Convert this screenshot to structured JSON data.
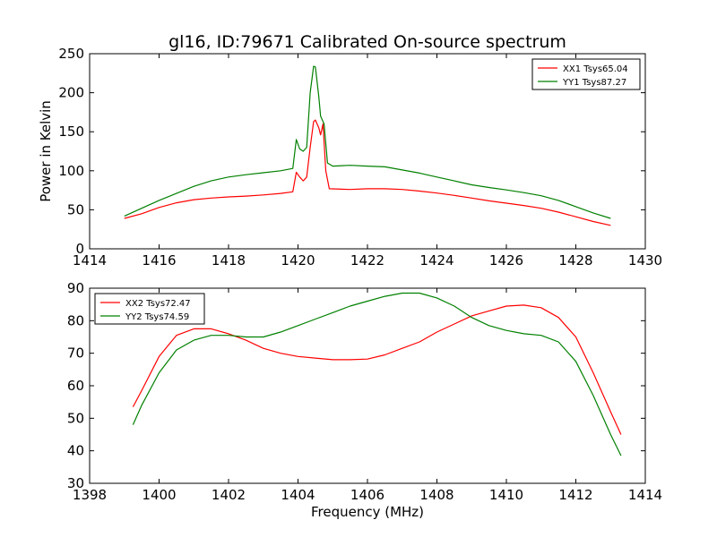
{
  "figure": {
    "title": "gl16, ID:79671 Calibrated On-source spectrum"
  },
  "chart_data": [
    {
      "type": "line",
      "title": "gl16, ID:79671 Calibrated On-source spectrum",
      "xlabel": "",
      "ylabel": "Power in Kelvin",
      "xlim": [
        1414,
        1430
      ],
      "ylim": [
        0,
        250
      ],
      "xticks": [
        1414,
        1416,
        1418,
        1420,
        1422,
        1424,
        1426,
        1428,
        1430
      ],
      "yticks": [
        0,
        50,
        100,
        150,
        200,
        250
      ],
      "grid": false,
      "legend_position": "top-right",
      "series": [
        {
          "name": "XX1 Tsys65.04",
          "color": "#ff0000",
          "points": [
            [
              1415,
              39
            ],
            [
              1415.5,
              45
            ],
            [
              1416,
              53
            ],
            [
              1416.5,
              59
            ],
            [
              1417,
              63
            ],
            [
              1417.5,
              65
            ],
            [
              1418,
              66.5
            ],
            [
              1418.5,
              67.5
            ],
            [
              1419,
              69
            ],
            [
              1419.5,
              71
            ],
            [
              1419.85,
              73
            ],
            [
              1419.95,
              98
            ],
            [
              1420.05,
              92
            ],
            [
              1420.15,
              87
            ],
            [
              1420.25,
              92
            ],
            [
              1420.35,
              130
            ],
            [
              1420.45,
              163
            ],
            [
              1420.5,
              165
            ],
            [
              1420.6,
              155
            ],
            [
              1420.65,
              146
            ],
            [
              1420.72,
              160
            ],
            [
              1420.8,
              100
            ],
            [
              1420.9,
              77
            ],
            [
              1421.5,
              76
            ],
            [
              1422,
              77
            ],
            [
              1422.5,
              77
            ],
            [
              1423,
              76
            ],
            [
              1423.5,
              74
            ],
            [
              1424,
              71.5
            ],
            [
              1424.5,
              68.5
            ],
            [
              1425,
              65
            ],
            [
              1425.5,
              61.5
            ],
            [
              1426,
              58.5
            ],
            [
              1426.5,
              55.5
            ],
            [
              1427,
              52
            ],
            [
              1427.5,
              47
            ],
            [
              1428,
              41
            ],
            [
              1428.5,
              35
            ],
            [
              1429,
              30
            ]
          ]
        },
        {
          "name": "YY1 Tsys87.27",
          "color": "#008000",
          "points": [
            [
              1415,
              42
            ],
            [
              1415.5,
              52
            ],
            [
              1416,
              62
            ],
            [
              1416.5,
              71
            ],
            [
              1417,
              80
            ],
            [
              1417.5,
              87
            ],
            [
              1418,
              92
            ],
            [
              1418.5,
              95
            ],
            [
              1419,
              97.5
            ],
            [
              1419.5,
              100
            ],
            [
              1419.85,
              103
            ],
            [
              1419.95,
              140
            ],
            [
              1420.05,
              128
            ],
            [
              1420.15,
              125
            ],
            [
              1420.25,
              130
            ],
            [
              1420.35,
              200
            ],
            [
              1420.45,
              234
            ],
            [
              1420.5,
              233
            ],
            [
              1420.6,
              195
            ],
            [
              1420.65,
              170
            ],
            [
              1420.75,
              160
            ],
            [
              1420.85,
              110
            ],
            [
              1421,
              106
            ],
            [
              1421.5,
              107
            ],
            [
              1422,
              106
            ],
            [
              1422.5,
              105
            ],
            [
              1423,
              101
            ],
            [
              1423.5,
              97
            ],
            [
              1424,
              92
            ],
            [
              1424.5,
              87
            ],
            [
              1425,
              82
            ],
            [
              1425.5,
              78.5
            ],
            [
              1426,
              75.5
            ],
            [
              1426.5,
              72
            ],
            [
              1427,
              68
            ],
            [
              1427.5,
              62
            ],
            [
              1428,
              54
            ],
            [
              1428.5,
              46
            ],
            [
              1429,
              39
            ]
          ]
        }
      ]
    },
    {
      "type": "line",
      "title": "",
      "xlabel": "Frequency (MHz)",
      "ylabel": "",
      "xlim": [
        1398,
        1414
      ],
      "ylim": [
        30,
        90
      ],
      "xticks": [
        1398,
        1400,
        1402,
        1404,
        1406,
        1408,
        1410,
        1412,
        1414
      ],
      "yticks": [
        30,
        40,
        50,
        60,
        70,
        80,
        90
      ],
      "grid": false,
      "legend_position": "top-left",
      "series": [
        {
          "name": "XX2 Tsys72.47",
          "color": "#ff0000",
          "points": [
            [
              1399.25,
              53.5
            ],
            [
              1399.5,
              58.5
            ],
            [
              1400,
              69
            ],
            [
              1400.5,
              75.5
            ],
            [
              1401,
              77.5
            ],
            [
              1401.5,
              77.5
            ],
            [
              1402,
              76
            ],
            [
              1402.5,
              74
            ],
            [
              1403,
              71.5
            ],
            [
              1403.5,
              70
            ],
            [
              1404,
              69
            ],
            [
              1404.5,
              68.5
            ],
            [
              1405,
              68
            ],
            [
              1405.5,
              68
            ],
            [
              1406,
              68.2
            ],
            [
              1406.5,
              69.5
            ],
            [
              1407,
              71.5
            ],
            [
              1407.5,
              73.5
            ],
            [
              1408,
              76.5
            ],
            [
              1408.5,
              79
            ],
            [
              1409,
              81.5
            ],
            [
              1409.5,
              83
            ],
            [
              1410,
              84.5
            ],
            [
              1410.5,
              84.8
            ],
            [
              1411,
              84
            ],
            [
              1411.5,
              81
            ],
            [
              1412,
              75
            ],
            [
              1412.5,
              64
            ],
            [
              1413,
              52
            ],
            [
              1413.3,
              45
            ]
          ]
        },
        {
          "name": "YY2 Tsys74.59",
          "color": "#008000",
          "points": [
            [
              1399.25,
              48
            ],
            [
              1399.5,
              54
            ],
            [
              1400,
              64
            ],
            [
              1400.5,
              71
            ],
            [
              1401,
              74
            ],
            [
              1401.5,
              75.5
            ],
            [
              1402,
              75.5
            ],
            [
              1402.5,
              75
            ],
            [
              1403,
              75
            ],
            [
              1403.5,
              76.5
            ],
            [
              1404,
              78.5
            ],
            [
              1404.5,
              80.5
            ],
            [
              1405,
              82.5
            ],
            [
              1405.5,
              84.5
            ],
            [
              1406,
              86
            ],
            [
              1406.5,
              87.5
            ],
            [
              1407,
              88.5
            ],
            [
              1407.5,
              88.5
            ],
            [
              1408,
              87
            ],
            [
              1408.5,
              84.5
            ],
            [
              1409,
              81
            ],
            [
              1409.5,
              78.5
            ],
            [
              1410,
              77
            ],
            [
              1410.5,
              76
            ],
            [
              1411,
              75.5
            ],
            [
              1411.5,
              73.5
            ],
            [
              1412,
              67.5
            ],
            [
              1412.5,
              57
            ],
            [
              1413,
              45
            ],
            [
              1413.3,
              38.5
            ]
          ]
        }
      ]
    }
  ]
}
